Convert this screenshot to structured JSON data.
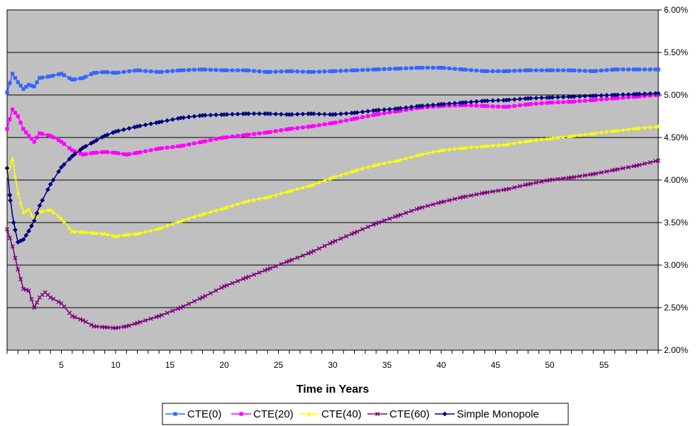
{
  "chart_data": {
    "type": "line",
    "title": "",
    "xlabel": "Time in Years",
    "ylabel": "",
    "xlim": [
      0,
      60
    ],
    "ylim": [
      0.02,
      0.06
    ],
    "x_ticks": [
      {
        "value": 5,
        "label": "5"
      },
      {
        "value": 10,
        "label": "10"
      },
      {
        "value": 15,
        "label": "15"
      },
      {
        "value": 20,
        "label": "20"
      },
      {
        "value": 25,
        "label": "25"
      },
      {
        "value": 30,
        "label": "30"
      },
      {
        "value": 35,
        "label": "35"
      },
      {
        "value": 40,
        "label": "40"
      },
      {
        "value": 45,
        "label": "45"
      },
      {
        "value": 50,
        "label": "50"
      },
      {
        "value": 55,
        "label": "55"
      }
    ],
    "y_ticks": [
      {
        "value": 0.02,
        "label": "2.00%"
      },
      {
        "value": 0.025,
        "label": "2.50%"
      },
      {
        "value": 0.03,
        "label": "3.00%"
      },
      {
        "value": 0.035,
        "label": "3.50%"
      },
      {
        "value": 0.04,
        "label": "4.00%"
      },
      {
        "value": 0.045,
        "label": "4.50%"
      },
      {
        "value": 0.05,
        "label": "5.00%"
      },
      {
        "value": 0.055,
        "label": "5.50%"
      },
      {
        "value": 0.06,
        "label": "6.00%"
      }
    ],
    "y_axis_side": "right",
    "grid": true,
    "legend_position": "bottom",
    "plot_background": "#c0c0c0",
    "series": [
      {
        "name": "CTE(0)",
        "color": "#3366ff",
        "marker": "square",
        "x": [
          0,
          0.5,
          1,
          1.5,
          2,
          2.5,
          3,
          4,
          5,
          6,
          7,
          8,
          9,
          10,
          12,
          14,
          16,
          18,
          20,
          22,
          24,
          26,
          28,
          30,
          32,
          34,
          36,
          38,
          40,
          42,
          44,
          46,
          48,
          50,
          52,
          54,
          56,
          58,
          60
        ],
        "y": [
          0.0503,
          0.0525,
          0.0515,
          0.0507,
          0.0512,
          0.051,
          0.052,
          0.0522,
          0.0525,
          0.0518,
          0.052,
          0.0526,
          0.0527,
          0.0526,
          0.0529,
          0.0527,
          0.0529,
          0.053,
          0.0529,
          0.0529,
          0.0527,
          0.0528,
          0.0527,
          0.0528,
          0.0529,
          0.053,
          0.0531,
          0.0532,
          0.0532,
          0.053,
          0.0528,
          0.0528,
          0.0529,
          0.0529,
          0.0529,
          0.0528,
          0.053,
          0.053,
          0.053
        ]
      },
      {
        "name": "CTE(20)",
        "color": "#ff00ff",
        "marker": "square",
        "x": [
          0,
          0.5,
          1,
          1.5,
          2,
          2.5,
          3,
          4,
          5,
          6,
          7,
          8,
          9,
          10,
          11,
          12,
          14,
          16,
          18,
          20,
          22,
          24,
          26,
          28,
          30,
          32,
          34,
          36,
          38,
          40,
          42,
          44,
          46,
          48,
          50,
          52,
          54,
          56,
          58,
          60
        ],
        "y": [
          0.046,
          0.0483,
          0.0475,
          0.046,
          0.0452,
          0.0445,
          0.0455,
          0.0452,
          0.0445,
          0.0435,
          0.043,
          0.0432,
          0.0433,
          0.0432,
          0.043,
          0.0432,
          0.0437,
          0.044,
          0.0445,
          0.045,
          0.0453,
          0.0456,
          0.046,
          0.0463,
          0.0467,
          0.0472,
          0.0477,
          0.0481,
          0.0485,
          0.0487,
          0.0488,
          0.0487,
          0.0486,
          0.0489,
          0.0491,
          0.0492,
          0.0494,
          0.0496,
          0.0498,
          0.05
        ]
      },
      {
        "name": "CTE(40)",
        "color": "#ffff00",
        "marker": "triangle",
        "x": [
          0,
          0.5,
          1,
          1.5,
          2,
          2.5,
          3,
          4,
          5,
          6,
          7,
          8,
          9,
          10,
          11,
          12,
          14,
          16,
          18,
          20,
          22,
          24,
          26,
          28,
          30,
          32,
          34,
          36,
          38,
          40,
          42,
          44,
          46,
          48,
          50,
          52,
          54,
          56,
          58,
          60
        ],
        "y": [
          0.0405,
          0.0425,
          0.0385,
          0.0362,
          0.0366,
          0.0352,
          0.0363,
          0.0365,
          0.0355,
          0.034,
          0.0339,
          0.0338,
          0.0337,
          0.0334,
          0.0336,
          0.0337,
          0.0343,
          0.0352,
          0.036,
          0.0367,
          0.0375,
          0.038,
          0.0387,
          0.0394,
          0.0403,
          0.0411,
          0.0418,
          0.0423,
          0.043,
          0.0435,
          0.0438,
          0.044,
          0.0442,
          0.0446,
          0.0449,
          0.0452,
          0.0455,
          0.0458,
          0.0461,
          0.0463
        ]
      },
      {
        "name": "CTE(60)",
        "color": "#800080",
        "marker": "x",
        "x": [
          0,
          0.5,
          1,
          1.5,
          2,
          2.5,
          3,
          3.5,
          4,
          5,
          6,
          7,
          8,
          9,
          10,
          11,
          12,
          14,
          16,
          18,
          20,
          22,
          24,
          26,
          28,
          30,
          32,
          34,
          36,
          38,
          40,
          42,
          44,
          46,
          48,
          50,
          52,
          54,
          56,
          58,
          60
        ],
        "y": [
          0.0342,
          0.0322,
          0.0295,
          0.0272,
          0.027,
          0.025,
          0.0262,
          0.0268,
          0.0262,
          0.0255,
          0.024,
          0.0235,
          0.0228,
          0.0227,
          0.0226,
          0.0228,
          0.0232,
          0.024,
          0.025,
          0.0262,
          0.0275,
          0.0285,
          0.0295,
          0.0305,
          0.0315,
          0.0327,
          0.0338,
          0.0349,
          0.0358,
          0.0367,
          0.0374,
          0.038,
          0.0385,
          0.0389,
          0.0395,
          0.04,
          0.0403,
          0.0407,
          0.0412,
          0.0417,
          0.0423
        ]
      },
      {
        "name": "Simple Monopole",
        "color": "#000080",
        "marker": "diamond",
        "x": [
          0,
          0.3,
          0.6,
          1,
          1.5,
          2,
          2.5,
          3,
          4,
          5,
          6,
          7,
          8,
          9,
          10,
          12,
          14,
          16,
          18,
          20,
          22,
          24,
          26,
          28,
          30,
          32,
          34,
          36,
          38,
          40,
          42,
          44,
          46,
          48,
          50,
          52,
          54,
          56,
          58,
          60
        ],
        "y": [
          0.0414,
          0.0376,
          0.035,
          0.0327,
          0.033,
          0.034,
          0.0352,
          0.037,
          0.0395,
          0.0415,
          0.0428,
          0.0438,
          0.0445,
          0.0452,
          0.0457,
          0.0463,
          0.0468,
          0.0473,
          0.0476,
          0.0477,
          0.0478,
          0.0478,
          0.0477,
          0.0478,
          0.0477,
          0.0479,
          0.0482,
          0.0484,
          0.0487,
          0.0489,
          0.0491,
          0.0493,
          0.0494,
          0.0496,
          0.0497,
          0.0498,
          0.0499,
          0.05,
          0.0501,
          0.0502
        ]
      }
    ]
  }
}
